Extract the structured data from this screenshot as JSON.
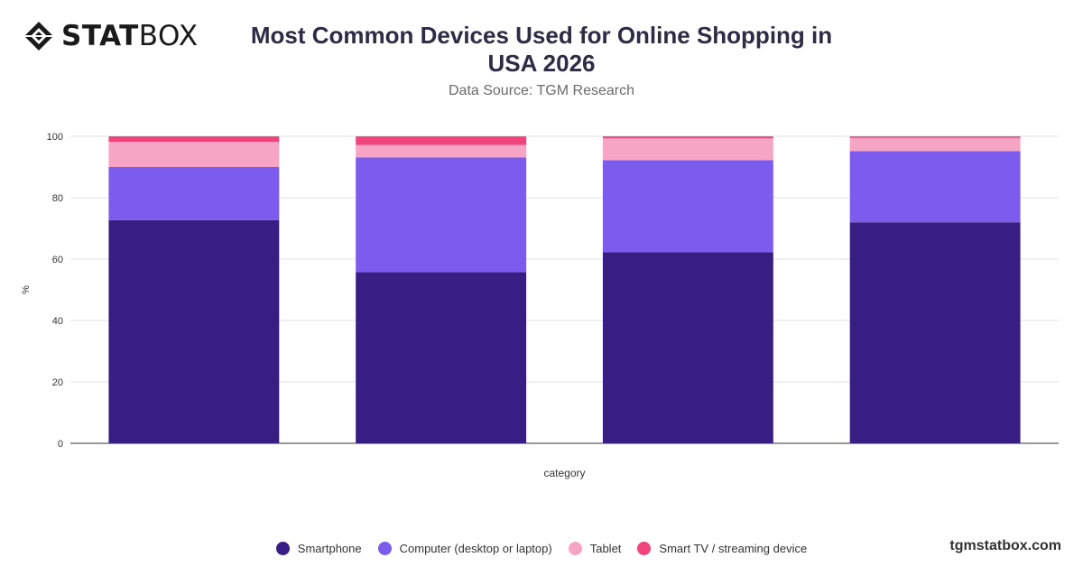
{
  "logo": {
    "bold_text": "STAT",
    "light_text": "BOX",
    "icon": "diamond-logo-icon"
  },
  "header": {
    "title_line1": "Most Common Devices Used for Online Shopping in",
    "title_line2": "USA 2026",
    "subtitle": "Data Source: TGM Research"
  },
  "footer": {
    "url": "tgmstatbox.com"
  },
  "chart_data": {
    "type": "bar",
    "stacked": true,
    "title": "Most Common Devices Used for Online Shopping in USA 2026",
    "subtitle": "Data Source: TGM Research",
    "xlabel": "category",
    "ylabel": "%",
    "ylim": [
      0,
      100
    ],
    "yticks": [
      0,
      20,
      40,
      60,
      80,
      100
    ],
    "grid": true,
    "legend_position": "bottom",
    "categories": [
      "",
      "",
      "",
      ""
    ],
    "series": [
      {
        "name": "Smartphone",
        "color": "#371e82",
        "values": [
          72.7,
          55.8,
          62.2,
          72
        ]
      },
      {
        "name": "Computer (desktop or laptop)",
        "color": "#7b5ced",
        "values": [
          17.3,
          37.3,
          30,
          23.2
        ]
      },
      {
        "name": "Tablet",
        "color": "#f7a5c4",
        "values": [
          8.2,
          4.1,
          7.2,
          4.3
        ]
      },
      {
        "name": "Smart TV / streaming device",
        "color": "#f0457c",
        "values": [
          1.8,
          2.8,
          0.6,
          0.5
        ]
      }
    ]
  }
}
